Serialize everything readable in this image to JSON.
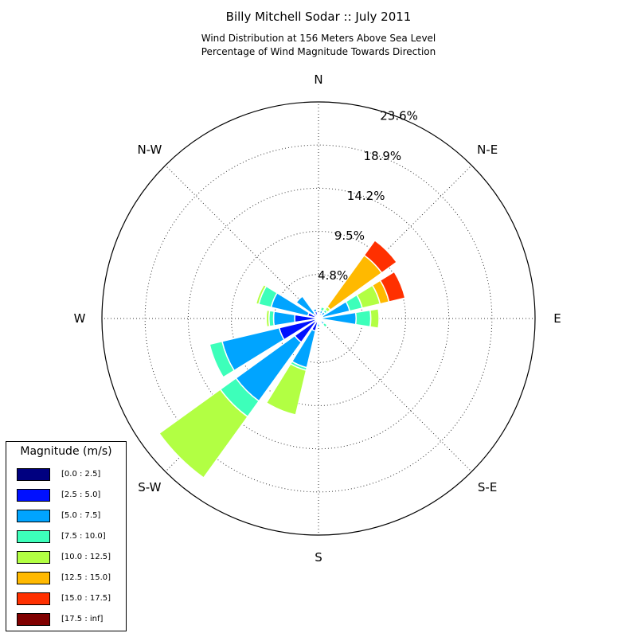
{
  "title": "Billy Mitchell Sodar :: July 2011",
  "subtitle_lines": [
    "Wind Distribution at 156 Meters Above Sea Level",
    "Percentage of Wind Magnitude Towards Direction"
  ],
  "chart_data": {
    "type": "wind_rose",
    "title": "Billy Mitchell Sodar :: July 2011",
    "subtitle": "Wind Distribution at 156 Meters Above Sea Level / Percentage of Wind Magnitude Towards Direction",
    "direction_labels": [
      "N",
      "N-E",
      "E",
      "S-E",
      "S",
      "S-W",
      "W",
      "N-W"
    ],
    "radial_tick_labels": [
      "4.8%",
      "9.5%",
      "14.2%",
      "18.9%",
      "23.6%"
    ],
    "radial_max": 23.6,
    "grid": true,
    "legend": {
      "title": "Magnitude (m/s)",
      "placement": "bottom-left",
      "bins": [
        {
          "label": "[0.0 : 2.5]",
          "color": "#000080"
        },
        {
          "label": "[2.5 : 5.0]",
          "color": "#0010ff"
        },
        {
          "label": "[5.0 : 7.5]",
          "color": "#00a4ff"
        },
        {
          "label": "[7.5 : 10.0]",
          "color": "#3dffba"
        },
        {
          "label": "[10.0 : 12.5]",
          "color": "#b2ff43"
        },
        {
          "label": "[12.5 : 15.0]",
          "color": "#ffb900"
        },
        {
          "label": "[15.0 : 17.5]",
          "color": "#ff3000"
        },
        {
          "label": "[17.5 : inf]",
          "color": "#800000"
        }
      ]
    },
    "sectors": [
      {
        "direction_deg": 0,
        "cumulative_pct": [
          0.1,
          0.4
        ]
      },
      {
        "direction_deg": 22.5,
        "cumulative_pct": [
          0.1,
          0.6,
          0.9,
          1.3
        ]
      },
      {
        "direction_deg": 45,
        "cumulative_pct": [
          0.1,
          0.5,
          0.9,
          1.2,
          1.6,
          8.5,
          10.5
        ]
      },
      {
        "direction_deg": 67.5,
        "cumulative_pct": [
          0.1,
          0.5,
          3.5,
          4.9,
          6.9,
          7.9,
          9.7
        ]
      },
      {
        "direction_deg": 90,
        "cumulative_pct": [
          0.1,
          0.4,
          4.1,
          5.7,
          6.6
        ]
      },
      {
        "direction_deg": 112.5,
        "cumulative_pct": [
          0.1,
          0.3
        ]
      },
      {
        "direction_deg": 135,
        "cumulative_pct": [
          0.1,
          0.4,
          0.8,
          1.2
        ]
      },
      {
        "direction_deg": 157.5,
        "cumulative_pct": [
          0.1,
          0.4
        ]
      },
      {
        "direction_deg": 180,
        "cumulative_pct": [
          0.1,
          0.6,
          0.9
        ]
      },
      {
        "direction_deg": 202.5,
        "cumulative_pct": [
          0.1,
          1.4,
          5.5,
          5.8,
          10.8
        ]
      },
      {
        "direction_deg": 225,
        "cumulative_pct": [
          0.2,
          3.2,
          11.1,
          13.2,
          21.4
        ]
      },
      {
        "direction_deg": 247.5,
        "cumulative_pct": [
          0.2,
          4.4,
          10.8,
          12.2
        ]
      },
      {
        "direction_deg": 270,
        "cumulative_pct": [
          0.1,
          2.6,
          4.9,
          5.4,
          5.7
        ]
      },
      {
        "direction_deg": 292.5,
        "cumulative_pct": [
          0.1,
          1.2,
          5.3,
          6.7,
          7.0
        ]
      },
      {
        "direction_deg": 315,
        "cumulative_pct": [
          0.1,
          0.7,
          3.0
        ]
      },
      {
        "direction_deg": 337.5,
        "cumulative_pct": [
          0.1,
          0.8,
          1.1
        ]
      }
    ]
  }
}
